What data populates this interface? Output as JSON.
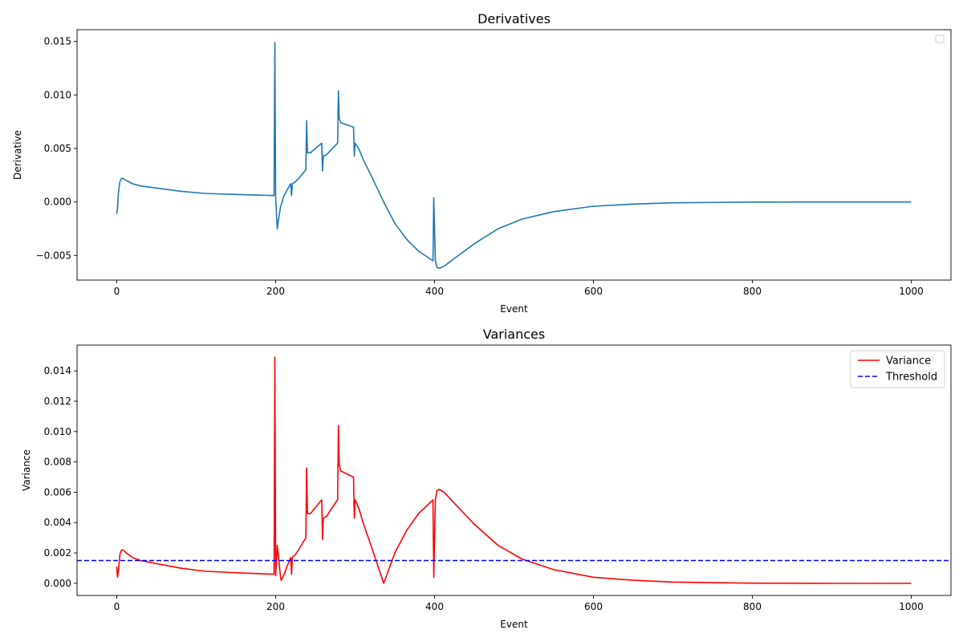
{
  "chart_data": [
    {
      "type": "line",
      "title": "Derivatives",
      "xlabel": "Event",
      "ylabel": "Derivative",
      "xlim": [
        -50,
        1050
      ],
      "ylim": [
        -0.0073,
        0.0161
      ],
      "x_ticks": [
        0,
        200,
        400,
        600,
        800,
        1000
      ],
      "x_tick_labels": [
        "0",
        "200",
        "400",
        "600",
        "800",
        "1000"
      ],
      "y_ticks": [
        -0.005,
        0.0,
        0.005,
        0.01,
        0.015
      ],
      "y_tick_labels": [
        "−0.005",
        "0.000",
        "0.005",
        "0.010",
        "0.015"
      ],
      "grid": false,
      "legend": "top-right (empty)",
      "series": [
        {
          "color": "#1f77b4",
          "style": "solid",
          "points": [
            [
              0,
              -0.0011
            ],
            [
              1,
              -0.0005
            ],
            [
              2,
              0.0008
            ],
            [
              4,
              0.0019
            ],
            [
              6,
              0.0022
            ],
            [
              8,
              0.0022
            ],
            [
              12,
              0.002
            ],
            [
              20,
              0.0017
            ],
            [
              30,
              0.0015
            ],
            [
              50,
              0.0013
            ],
            [
              80,
              0.001
            ],
            [
              110,
              0.0008
            ],
            [
              150,
              0.0007
            ],
            [
              198,
              0.0006
            ],
            [
              199,
              0.0149
            ],
            [
              200,
              0.0005
            ],
            [
              202,
              -0.0025
            ],
            [
              204,
              -0.0015
            ],
            [
              206,
              -0.0005
            ],
            [
              210,
              0.0005
            ],
            [
              215,
              0.0012
            ],
            [
              219,
              0.0017
            ],
            [
              220,
              0.0006
            ],
            [
              221,
              0.0017
            ],
            [
              225,
              0.0019
            ],
            [
              230,
              0.0023
            ],
            [
              238,
              0.003
            ],
            [
              239,
              0.0076
            ],
            [
              240,
              0.0046
            ],
            [
              244,
              0.0046
            ],
            [
              250,
              0.005
            ],
            [
              258,
              0.0055
            ],
            [
              259,
              0.0029
            ],
            [
              260,
              0.0043
            ],
            [
              264,
              0.0044
            ],
            [
              270,
              0.0049
            ],
            [
              278,
              0.0055
            ],
            [
              279,
              0.0104
            ],
            [
              280,
              0.0078
            ],
            [
              282,
              0.0074
            ],
            [
              290,
              0.0072
            ],
            [
              298,
              0.007
            ],
            [
              299,
              0.0043
            ],
            [
              300,
              0.0055
            ],
            [
              305,
              0.0049
            ],
            [
              310,
              0.004
            ],
            [
              320,
              0.0025
            ],
            [
              336,
              0.0
            ],
            [
              350,
              -0.002
            ],
            [
              365,
              -0.0035
            ],
            [
              380,
              -0.0046
            ],
            [
              398,
              -0.0055
            ],
            [
              399,
              0.0004
            ],
            [
              401,
              -0.0055
            ],
            [
              403,
              -0.0061
            ],
            [
              406,
              -0.0062
            ],
            [
              412,
              -0.006
            ],
            [
              430,
              -0.005
            ],
            [
              450,
              -0.0039
            ],
            [
              480,
              -0.0025
            ],
            [
              510,
              -0.0016
            ],
            [
              550,
              -0.0009
            ],
            [
              600,
              -0.0004
            ],
            [
              650,
              -0.0002
            ],
            [
              700,
              -8e-05
            ],
            [
              800,
              -1e-05
            ],
            [
              900,
              0.0
            ],
            [
              1000,
              0.0
            ]
          ]
        }
      ]
    },
    {
      "type": "line",
      "title": "Variances",
      "xlabel": "Event",
      "ylabel": "Variance",
      "xlim": [
        -50,
        1050
      ],
      "ylim": [
        -0.0008,
        0.0157
      ],
      "x_ticks": [
        0,
        200,
        400,
        600,
        800,
        1000
      ],
      "x_tick_labels": [
        "0",
        "200",
        "400",
        "600",
        "800",
        "1000"
      ],
      "y_ticks": [
        0.0,
        0.002,
        0.004,
        0.006,
        0.008,
        0.01,
        0.012,
        0.014
      ],
      "y_tick_labels": [
        "0.000",
        "0.002",
        "0.004",
        "0.006",
        "0.008",
        "0.010",
        "0.012",
        "0.014"
      ],
      "grid": false,
      "legend": "top-right",
      "series": [
        {
          "name": "Variance",
          "color": "#ff0000",
          "style": "solid",
          "points": [
            [
              0,
              0.0011
            ],
            [
              1,
              0.0004
            ],
            [
              2,
              0.0008
            ],
            [
              4,
              0.0019
            ],
            [
              6,
              0.0022
            ],
            [
              8,
              0.0022
            ],
            [
              12,
              0.002
            ],
            [
              20,
              0.0017
            ],
            [
              30,
              0.0015
            ],
            [
              50,
              0.0013
            ],
            [
              80,
              0.001
            ],
            [
              110,
              0.0008
            ],
            [
              150,
              0.0007
            ],
            [
              198,
              0.0006
            ],
            [
              199,
              0.0149
            ],
            [
              200,
              0.0005
            ],
            [
              202,
              0.0025
            ],
            [
              204,
              0.0015
            ],
            [
              206,
              0.0005
            ],
            [
              207,
              0.0002
            ],
            [
              210,
              0.0005
            ],
            [
              215,
              0.0012
            ],
            [
              219,
              0.0017
            ],
            [
              220,
              0.0006
            ],
            [
              221,
              0.0017
            ],
            [
              225,
              0.0019
            ],
            [
              230,
              0.0023
            ],
            [
              238,
              0.003
            ],
            [
              239,
              0.0076
            ],
            [
              240,
              0.0046
            ],
            [
              244,
              0.0046
            ],
            [
              250,
              0.005
            ],
            [
              258,
              0.0055
            ],
            [
              259,
              0.0029
            ],
            [
              260,
              0.0043
            ],
            [
              264,
              0.0044
            ],
            [
              270,
              0.0049
            ],
            [
              278,
              0.0055
            ],
            [
              279,
              0.0104
            ],
            [
              280,
              0.0078
            ],
            [
              282,
              0.0074
            ],
            [
              290,
              0.0072
            ],
            [
              298,
              0.007
            ],
            [
              299,
              0.0043
            ],
            [
              300,
              0.0055
            ],
            [
              305,
              0.0049
            ],
            [
              310,
              0.004
            ],
            [
              320,
              0.0025
            ],
            [
              336,
              0.0
            ],
            [
              350,
              0.002
            ],
            [
              365,
              0.0035
            ],
            [
              380,
              0.0046
            ],
            [
              398,
              0.0055
            ],
            [
              399,
              0.0004
            ],
            [
              401,
              0.0055
            ],
            [
              403,
              0.0061
            ],
            [
              406,
              0.0062
            ],
            [
              412,
              0.006
            ],
            [
              430,
              0.005
            ],
            [
              450,
              0.0039
            ],
            [
              480,
              0.0025
            ],
            [
              510,
              0.0016
            ],
            [
              550,
              0.0009
            ],
            [
              600,
              0.0004
            ],
            [
              650,
              0.0002
            ],
            [
              700,
              8e-05
            ],
            [
              800,
              1e-05
            ],
            [
              900,
              0.0
            ],
            [
              1000,
              0.0
            ]
          ]
        },
        {
          "name": "Threshold",
          "color": "#0000ff",
          "style": "dashed",
          "type": "hline",
          "y": 0.0015
        }
      ]
    }
  ]
}
